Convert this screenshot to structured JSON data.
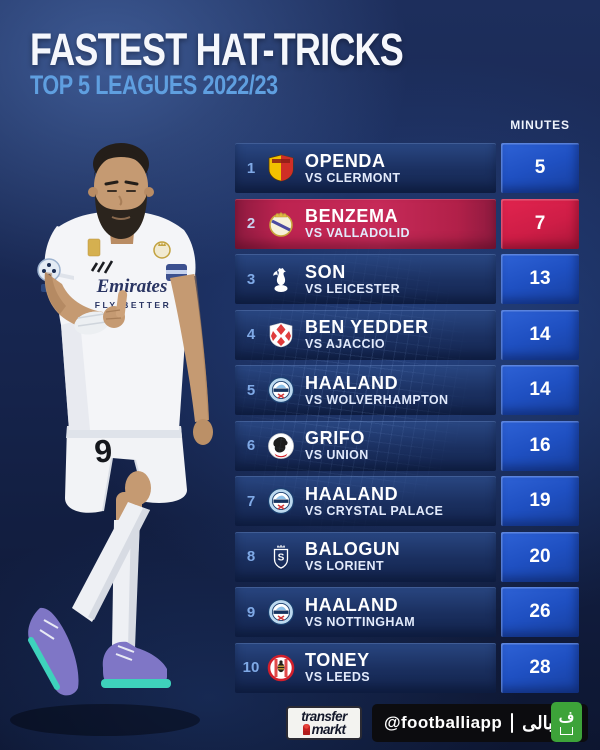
{
  "header": {
    "title": "FASTEST HAT-TRICKS",
    "subtitle": "TOP 5 LEAGUES 2022/23"
  },
  "table": {
    "minutes_header": "MINUTES",
    "rows": [
      {
        "rank": "1",
        "club": "RC Lens",
        "badge": "lens",
        "player": "OPENDA",
        "opponent": "VS CLERMONT",
        "minutes": "5",
        "highlight": false
      },
      {
        "rank": "2",
        "club": "Real Madrid",
        "badge": "real-madrid",
        "player": "BENZEMA",
        "opponent": "VS VALLADOLID",
        "minutes": "7",
        "highlight": true
      },
      {
        "rank": "3",
        "club": "Tottenham Hotspur",
        "badge": "tottenham",
        "player": "SON",
        "opponent": "VS LEICESTER",
        "minutes": "13",
        "highlight": false
      },
      {
        "rank": "4",
        "club": "AS Monaco",
        "badge": "monaco",
        "player": "BEN YEDDER",
        "opponent": "VS AJACCIO",
        "minutes": "14",
        "highlight": false
      },
      {
        "rank": "5",
        "club": "Manchester City",
        "badge": "man-city",
        "player": "HAALAND",
        "opponent": "VS WOLVERHAMPTON",
        "minutes": "14",
        "highlight": false
      },
      {
        "rank": "6",
        "club": "SC Freiburg",
        "badge": "freiburg",
        "player": "GRIFO",
        "opponent": "VS UNION",
        "minutes": "16",
        "highlight": false
      },
      {
        "rank": "7",
        "club": "Manchester City",
        "badge": "man-city",
        "player": "HAALAND",
        "opponent": "VS CRYSTAL PALACE",
        "minutes": "19",
        "highlight": false
      },
      {
        "rank": "8",
        "club": "Stade de Reims",
        "badge": "reims",
        "player": "BALOGUN",
        "opponent": "VS LORIENT",
        "minutes": "20",
        "highlight": false
      },
      {
        "rank": "9",
        "club": "Manchester City",
        "badge": "man-city",
        "player": "HAALAND",
        "opponent": "VS NOTTINGHAM",
        "minutes": "26",
        "highlight": false
      },
      {
        "rank": "10",
        "club": "Brentford",
        "badge": "brentford",
        "player": "TONEY",
        "opponent": "VS LEEDS",
        "minutes": "28",
        "highlight": false
      }
    ]
  },
  "chart_data": {
    "type": "table",
    "title": "FASTEST HAT-TRICKS",
    "subtitle": "TOP 5 LEAGUES 2022/23",
    "columns": [
      "rank",
      "player",
      "opponent",
      "minutes"
    ],
    "rows": [
      [
        1,
        "OPENDA",
        "VS CLERMONT",
        5
      ],
      [
        2,
        "BENZEMA",
        "VS VALLADOLID",
        7
      ],
      [
        3,
        "SON",
        "VS LEICESTER",
        13
      ],
      [
        4,
        "BEN YEDDER",
        "VS AJACCIO",
        14
      ],
      [
        5,
        "HAALAND",
        "VS WOLVERHAMPTON",
        14
      ],
      [
        6,
        "GRIFO",
        "VS UNION",
        16
      ],
      [
        7,
        "HAALAND",
        "VS CRYSTAL PALACE",
        19
      ],
      [
        8,
        "BALOGUN",
        "VS LORIENT",
        20
      ],
      [
        9,
        "HAALAND",
        "VS NOTTINGHAM",
        26
      ],
      [
        10,
        "TONEY",
        "VS LEEDS",
        28
      ]
    ],
    "highlighted_row": 2,
    "legend_position": "none",
    "grid": false
  },
  "player_photo": {
    "jersey_sponsor": "Emirates",
    "jersey_tagline": "FLY BETTER",
    "shorts_number": "9"
  },
  "footer": {
    "transfermarkt": {
      "line1": "transfer",
      "line2": "markt"
    },
    "social": {
      "handle": "@footballiapp",
      "brand": "فوتبالی",
      "icon_letter": "ف"
    }
  },
  "colors": {
    "background_navy": "#15254e",
    "row_navy": "#1d3566",
    "minutes_blue": "#1f50c2",
    "highlight_red": "#c62a58",
    "subtitle_blue": "#5f9fe0",
    "rank_blue": "#7fa9e6",
    "footballi_green": "#3da339"
  }
}
